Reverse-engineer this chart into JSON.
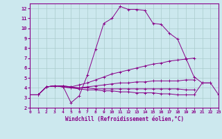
{
  "xlabel": "Windchill (Refroidissement éolien,°C)",
  "bg_color": "#cce8ee",
  "grid_color": "#aacccc",
  "line_color": "#880088",
  "spine_color": "#880088",
  "xlim": [
    0,
    23
  ],
  "ylim": [
    2,
    12.5
  ],
  "xticks": [
    0,
    1,
    2,
    3,
    4,
    5,
    6,
    7,
    8,
    9,
    10,
    11,
    12,
    13,
    14,
    15,
    16,
    17,
    18,
    19,
    20,
    21,
    22,
    23
  ],
  "yticks": [
    2,
    3,
    4,
    5,
    6,
    7,
    8,
    9,
    10,
    11,
    12
  ],
  "lines": [
    {
      "x": [
        0,
        1,
        2,
        3,
        4,
        5,
        6,
        7,
        8,
        9,
        10,
        11,
        12,
        13,
        14,
        15,
        16,
        17,
        18,
        19,
        20,
        21,
        22
      ],
      "y": [
        3.3,
        3.3,
        4.1,
        4.2,
        4.2,
        2.5,
        3.2,
        5.3,
        7.9,
        10.5,
        11.0,
        12.2,
        11.9,
        11.9,
        11.8,
        10.5,
        10.4,
        9.5,
        8.9,
        7.0,
        5.1,
        4.5,
        4.5
      ]
    },
    {
      "x": [
        0,
        1,
        2,
        3,
        4,
        5,
        6,
        7,
        8,
        9,
        10,
        11,
        12,
        13,
        14,
        15,
        16,
        17,
        18,
        19,
        20
      ],
      "y": [
        3.3,
        3.3,
        4.1,
        4.2,
        4.2,
        4.1,
        4.3,
        4.5,
        4.8,
        5.1,
        5.4,
        5.6,
        5.8,
        6.0,
        6.2,
        6.4,
        6.5,
        6.7,
        6.8,
        6.9,
        7.0
      ]
    },
    {
      "x": [
        0,
        1,
        2,
        3,
        4,
        5,
        6,
        7,
        8,
        9,
        10,
        11,
        12,
        13,
        14,
        15,
        16,
        17,
        18,
        19,
        20
      ],
      "y": [
        3.3,
        3.3,
        4.1,
        4.2,
        4.1,
        4.0,
        4.0,
        4.1,
        4.2,
        4.3,
        4.4,
        4.5,
        4.5,
        4.6,
        4.6,
        4.7,
        4.7,
        4.7,
        4.7,
        4.8,
        4.8
      ]
    },
    {
      "x": [
        0,
        1,
        2,
        3,
        4,
        5,
        6,
        7,
        8,
        9,
        10,
        11,
        12,
        13,
        14,
        15,
        16,
        17,
        18,
        19,
        20
      ],
      "y": [
        3.3,
        3.3,
        4.1,
        4.2,
        4.2,
        4.1,
        4.0,
        4.0,
        3.9,
        3.9,
        3.9,
        3.9,
        3.9,
        3.9,
        3.9,
        3.9,
        3.9,
        3.9,
        3.9,
        3.8,
        3.8
      ]
    },
    {
      "x": [
        0,
        1,
        2,
        3,
        4,
        5,
        6,
        7,
        8,
        9,
        10,
        11,
        12,
        13,
        14,
        15,
        16,
        17,
        18,
        19,
        20,
        21,
        22,
        23
      ],
      "y": [
        3.3,
        3.3,
        4.1,
        4.2,
        4.1,
        4.0,
        3.9,
        3.8,
        3.8,
        3.7,
        3.7,
        3.6,
        3.6,
        3.5,
        3.5,
        3.5,
        3.4,
        3.4,
        3.3,
        3.3,
        3.3,
        4.5,
        4.5,
        3.3
      ]
    }
  ]
}
